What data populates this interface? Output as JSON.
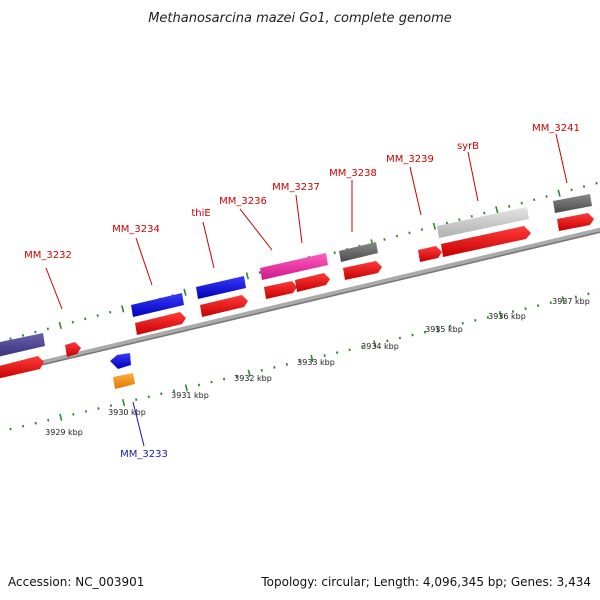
{
  "title": "Methanosarcina mazei Go1, complete genome",
  "footer": {
    "accession": "Accession: NC_003901",
    "summary": "Topology: circular; Length: 4,096,345 bp; Genes: 3,434"
  },
  "colors": {
    "forward_label": "#cc0000",
    "reverse_label": "#1a1aa8",
    "cds": "#e8171d",
    "tick": "#2e8b2e",
    "backbone": "#888888"
  },
  "kbp_labels": [
    "3929 kbp",
    "3930 kbp",
    "3931 kbp",
    "3932 kbp",
    "3933 kbp",
    "3934 kbp",
    "3935 kbp",
    "3936 kbp",
    "3937 kbp"
  ],
  "genes": [
    {
      "label": "MM_3232",
      "strand": "forward"
    },
    {
      "label": "MM_3233",
      "strand": "reverse"
    },
    {
      "label": "MM_3234",
      "strand": "forward"
    },
    {
      "label": "thiE",
      "strand": "forward"
    },
    {
      "label": "MM_3236",
      "strand": "forward"
    },
    {
      "label": "MM_3237",
      "strand": "forward"
    },
    {
      "label": "MM_3238",
      "strand": "forward"
    },
    {
      "label": "MM_3239",
      "strand": "forward"
    },
    {
      "label": "syrB",
      "strand": "forward"
    },
    {
      "label": "MM_3241",
      "strand": "forward"
    }
  ]
}
